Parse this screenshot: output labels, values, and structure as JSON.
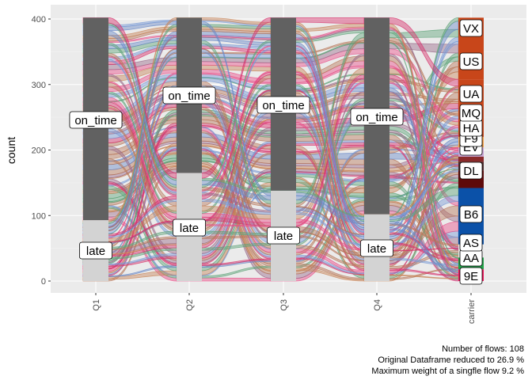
{
  "chart_data": {
    "type": "alluvial",
    "title": "",
    "xlabel": "",
    "ylabel": "count",
    "ylim": [
      0,
      400
    ],
    "yticks": [
      0,
      100,
      200,
      300,
      400
    ],
    "axes": [
      "Q1",
      "Q2",
      "Q3",
      "Q4",
      "carrier"
    ],
    "quarter_strata": [
      {
        "axis": "Q1",
        "late": 93,
        "on_time": 309
      },
      {
        "axis": "Q2",
        "late": 165,
        "on_time": 237
      },
      {
        "axis": "Q3",
        "late": 138,
        "on_time": 264
      },
      {
        "axis": "Q4",
        "late": 102,
        "on_time": 300
      }
    ],
    "carrier_strata": [
      {
        "name": "9E",
        "count": 18,
        "color": "#f0145a"
      },
      {
        "name": "AA",
        "count": 18,
        "color": "#21a148"
      },
      {
        "name": "AS",
        "count": 20,
        "color": "#e8e8e8"
      },
      {
        "name": "B6",
        "count": 86,
        "color": "#0b51a8"
      },
      {
        "name": "DL",
        "count": 27,
        "color": "#5e0a0a"
      },
      {
        "name": "EV",
        "count": 13,
        "color": "#4b2a2a"
      },
      {
        "name": "F9",
        "count": 8,
        "color": "#8a2a2a"
      },
      {
        "name": "HA",
        "count": 14,
        "color": "#c9a5d6"
      },
      {
        "name": "MQ",
        "count": 16,
        "color": "#f7a24a"
      },
      {
        "name": "UA",
        "count": 35,
        "color": "#c8461a"
      },
      {
        "name": "US",
        "count": 53,
        "color": "#c8461a"
      },
      {
        "name": "VX",
        "count": 94,
        "color": "#c8461a"
      }
    ],
    "flow_colors": [
      "#d6336c",
      "#7a9bd6",
      "#5fa37a",
      "#b8785a",
      "#e8508a",
      "#9a6a8a",
      "#6a8ac8",
      "#c8865a"
    ],
    "caption": [
      "Number of flows: 108",
      "Original Dataframe reduced to 26.9 %",
      "Maximum weight of a singfle flow 9.2 %"
    ]
  }
}
